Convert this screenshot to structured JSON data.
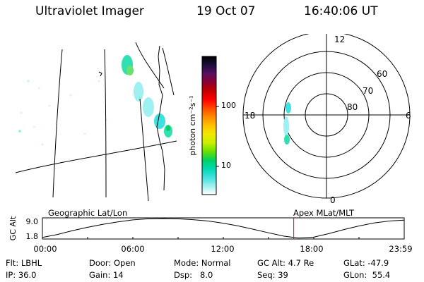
{
  "header": {
    "instrument": "Ultraviolet Imager",
    "date": "19 Oct 07",
    "time": "16:40:06 UT"
  },
  "colorbar": {
    "unit_label": "photon cm⁻²s⁻¹",
    "ticks": [
      "100",
      "10"
    ],
    "colors": [
      "#000000",
      "#1a0f3d",
      "#5a1060",
      "#8c0030",
      "#c40000",
      "#ff0000",
      "#ff4a00",
      "#ff8a00",
      "#ffc000",
      "#f2e800",
      "#c8f000",
      "#6ae000",
      "#00d060",
      "#00d8b0",
      "#40e0e0",
      "#9ff0f0",
      "#ffffff"
    ]
  },
  "polar": {
    "hour_labels": [
      "12",
      "18",
      "6",
      "0"
    ],
    "lat_labels": [
      "60",
      "70",
      "80"
    ]
  },
  "bottom_panel": {
    "left_label": "Geographic Lat/Lon",
    "right_label": "Apex MLat/MLT",
    "y_axis_title": "GC Alt",
    "y_ticks": [
      "9.0",
      "1.8"
    ],
    "x_ticks": [
      "00:00",
      "06:00",
      "12:00",
      "18:00",
      "23:59"
    ],
    "marker_color": "#ff0000"
  },
  "chart_data": {
    "type": "line",
    "title": "",
    "xlabel": "",
    "ylabel": "GC Alt",
    "x_ticks": [
      "00:00",
      "06:00",
      "12:00",
      "18:00",
      "23:59"
    ],
    "xlim": [
      0,
      24
    ],
    "ylim": [
      1.8,
      9.0
    ],
    "series": [
      {
        "x": [
          0,
          1,
          2,
          3,
          4,
          5,
          6,
          7,
          8,
          9,
          10,
          11,
          12,
          13,
          14,
          15,
          16,
          17,
          18,
          19,
          20,
          21,
          22,
          23,
          23.98
        ],
        "y": [
          2.1,
          3.2,
          4.6,
          5.8,
          6.9,
          7.8,
          8.5,
          8.9,
          9.0,
          8.9,
          8.6,
          8.1,
          7.3,
          6.3,
          5.1,
          3.8,
          2.6,
          1.9,
          2.2,
          3.5,
          5.0,
          6.3,
          7.4,
          8.1,
          8.4
        ]
      }
    ],
    "marker_time": 16.67,
    "grid": false,
    "legend": "none"
  },
  "status": {
    "flt_label": "Flt:",
    "flt_value": "LBHL",
    "ip_label": "IP:",
    "ip_value": "36.0",
    "door_label": "Door:",
    "door_value": "Open",
    "gain_label": "Gain:",
    "gain_value": "14",
    "mode_label": "Mode:",
    "mode_value": "Normal",
    "dsp_label": "Dsp:",
    "dsp_value": "8.0",
    "gcalt_label": "GC Alt:",
    "gcalt_value": "4.7 Re",
    "seq_label": "Seq:",
    "seq_value": "39",
    "glat_label": "GLat:",
    "glat_value": "-47.9",
    "glon_label": "GLon:",
    "glon_value": "55.4"
  }
}
